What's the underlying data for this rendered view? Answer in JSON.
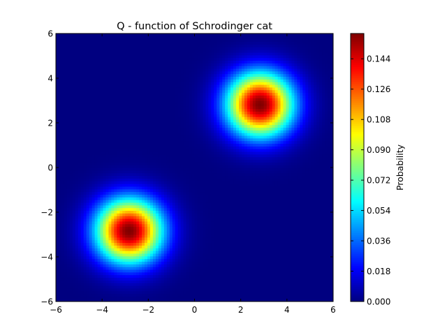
{
  "chart_data": {
    "type": "heatmap",
    "title": "Q - function of Schrodinger cat",
    "xlabel": "",
    "ylabel": "",
    "xlim": [
      -6,
      6
    ],
    "ylim": [
      -6,
      6
    ],
    "x_ticks": [
      -6,
      -4,
      -2,
      0,
      2,
      4,
      6
    ],
    "y_ticks": [
      -6,
      -4,
      -2,
      0,
      2,
      4,
      6
    ],
    "x_tick_labels": [
      "−6",
      "−4",
      "−2",
      "0",
      "2",
      "4",
      "6"
    ],
    "y_tick_labels": [
      "−6",
      "−4",
      "−2",
      "0",
      "2",
      "4",
      "6"
    ],
    "colormap": "jet",
    "grid": false,
    "peaks": [
      {
        "x": 2.83,
        "y": 2.83,
        "peak_value": 0.159
      },
      {
        "x": -2.83,
        "y": -2.83,
        "peak_value": 0.159
      }
    ],
    "peak_width_sigma": 1.0,
    "colorbar": {
      "label": "Probability",
      "min": 0.0,
      "max": 0.159,
      "ticks": [
        0.0,
        0.018,
        0.036,
        0.054,
        0.072,
        0.09,
        0.108,
        0.126,
        0.144
      ],
      "tick_labels": [
        "0.000",
        "0.018",
        "0.036",
        "0.054",
        "0.072",
        "0.090",
        "0.108",
        "0.126",
        "0.144"
      ]
    }
  }
}
